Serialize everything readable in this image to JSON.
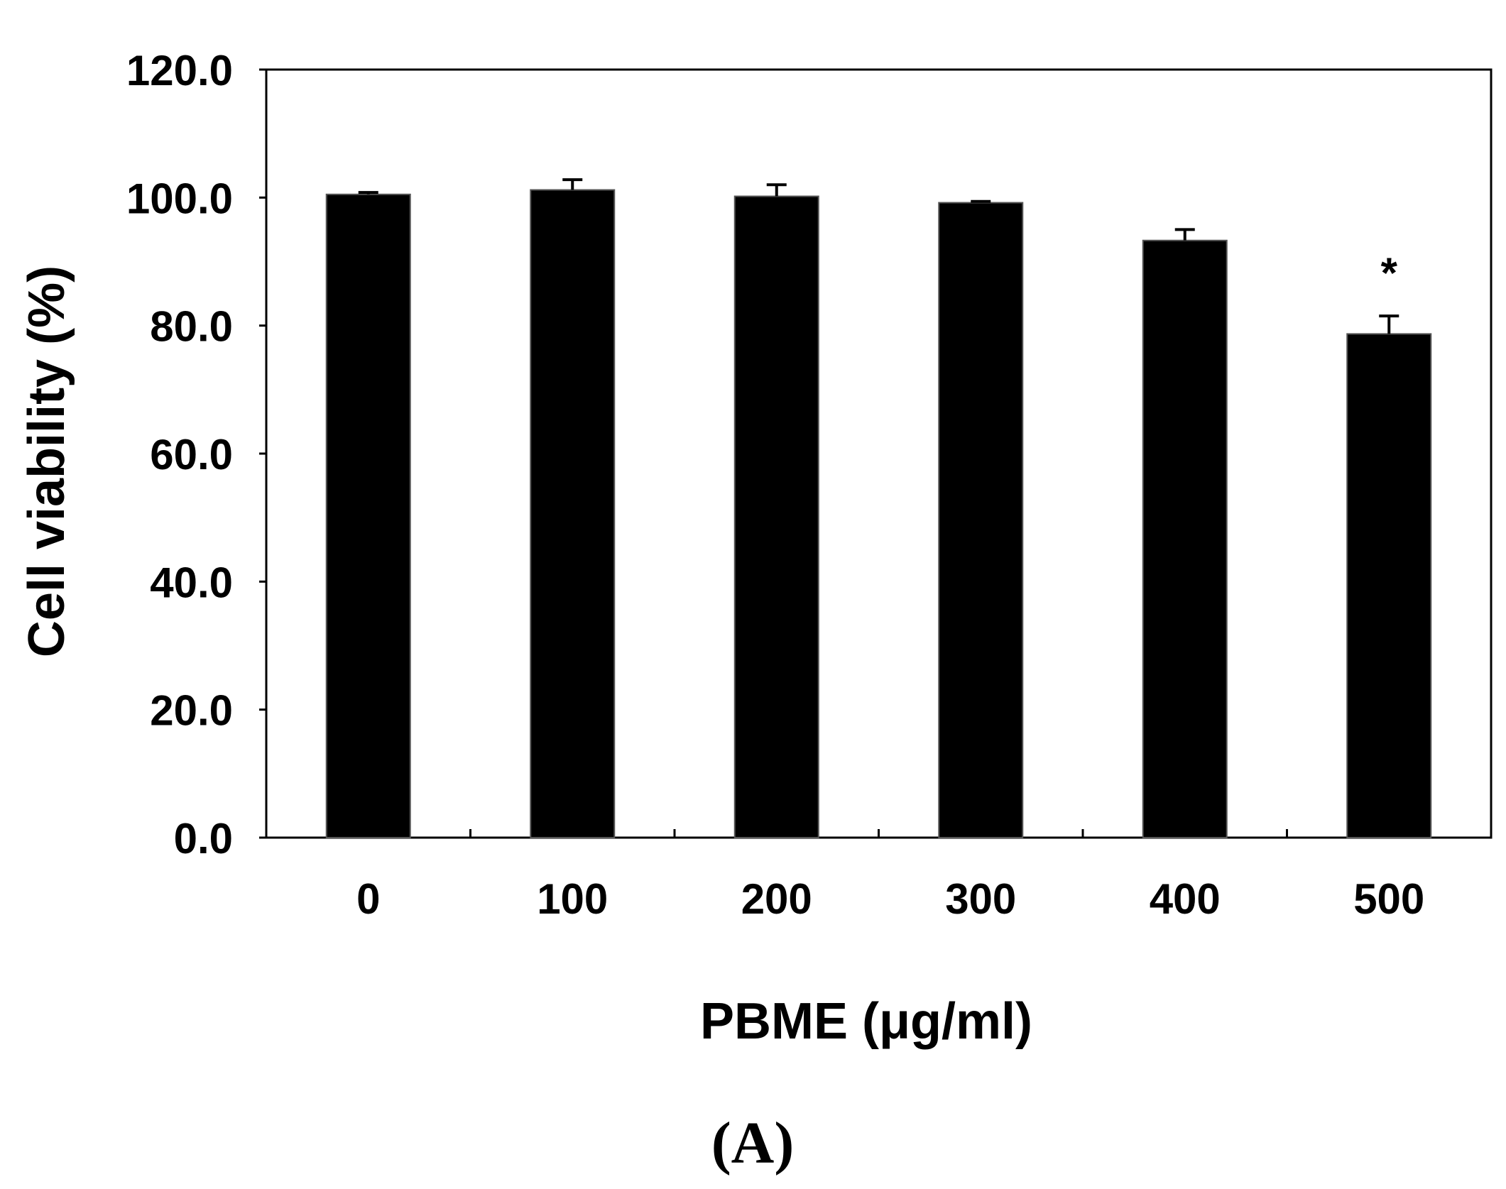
{
  "chart_data": {
    "type": "bar",
    "categories": [
      "0",
      "100",
      "200",
      "300",
      "400",
      "500"
    ],
    "values": [
      100.5,
      101.2,
      100.2,
      99.2,
      93.3,
      78.7
    ],
    "errors": [
      0.3,
      1.6,
      1.8,
      0.2,
      1.7,
      2.8
    ],
    "annotations": [
      {
        "category": "500",
        "text": "*"
      }
    ],
    "xlabel": "PBME (μg/ml)",
    "ylabel": "Cell viability (%)",
    "ylim": [
      0,
      120
    ],
    "yticks": [
      0,
      20,
      40,
      60,
      80,
      100,
      120
    ],
    "ytick_labels": [
      "0.0",
      "20.0",
      "40.0",
      "60.0",
      "80.0",
      "100.0",
      "120.0"
    ],
    "grid": false,
    "bar_color": "#000000",
    "panel_label": "(A)"
  }
}
